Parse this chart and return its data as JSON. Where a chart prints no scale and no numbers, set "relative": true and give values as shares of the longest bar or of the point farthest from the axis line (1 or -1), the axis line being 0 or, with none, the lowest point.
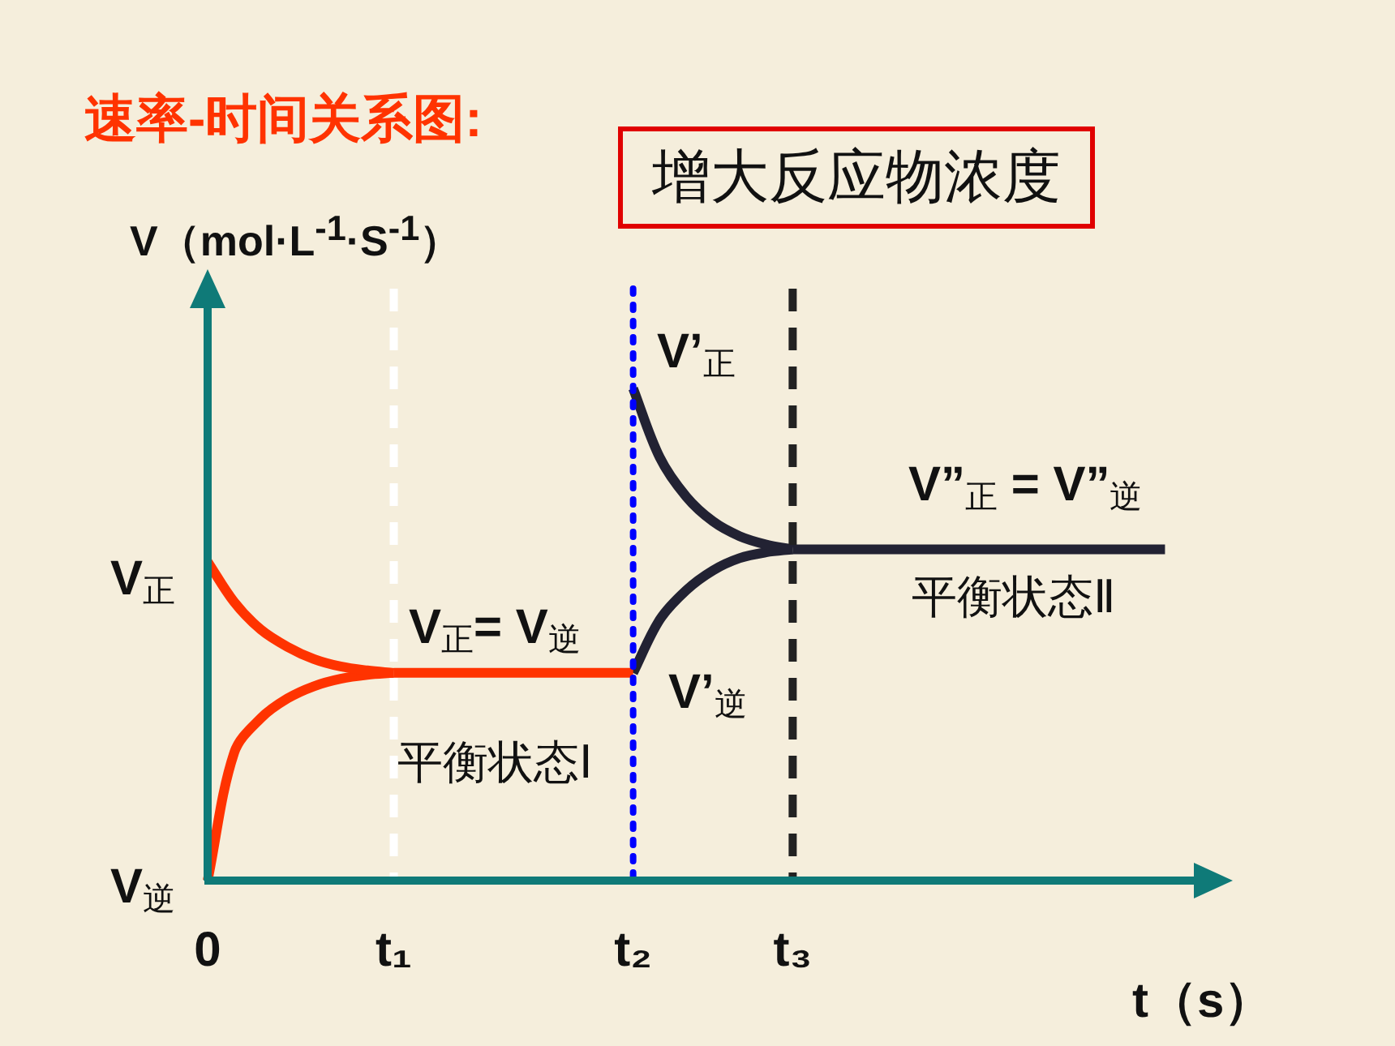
{
  "chart_data": {
    "type": "line",
    "title": "速率-时间关系图:",
    "subtitle": "增大反应物浓度",
    "xlabel": "t（s）",
    "ylabel": "V（mol·L$^{-1}$·S$^{-1}$）",
    "relative": true,
    "marker": "none",
    "line_style": "solid",
    "grid": false,
    "legend": false,
    "categories": [
      "0",
      null,
      null,
      null,
      null,
      null,
      null,
      "t₁",
      null,
      null,
      null,
      null,
      null,
      null,
      null,
      null,
      "t₂",
      null,
      null,
      null,
      null,
      null,
      "t₃",
      null,
      null,
      null,
      null,
      null,
      null,
      null,
      null,
      null,
      null,
      null,
      null,
      null,
      null,
      null,
      null
    ],
    "series": [
      {
        "color": "#ff3300",
        "values": [
          0.648,
          0.566,
          0.51,
          0.475,
          0.45,
          0.435,
          0.427,
          0.422,
          null,
          null,
          null,
          null,
          null,
          null,
          null,
          null,
          null,
          null,
          null,
          null,
          null,
          null,
          null,
          null,
          null,
          null,
          null,
          null,
          null,
          null,
          null,
          null,
          null,
          null,
          null,
          null,
          null,
          null,
          null
        ]
      },
      {
        "color": "#ff3300",
        "values": [
          0,
          0.26,
          0.33,
          0.37,
          0.395,
          0.41,
          0.418,
          0.422,
          null,
          null,
          null,
          null,
          null,
          null,
          null,
          null,
          null,
          null,
          null,
          null,
          null,
          null,
          null,
          null,
          null,
          null,
          null,
          null,
          null,
          null,
          null,
          null,
          null,
          null,
          null,
          null,
          null,
          null,
          null
        ]
      },
      {
        "color": "#ff3300",
        "values": [
          null,
          null,
          null,
          null,
          null,
          null,
          null,
          0.422,
          0.422,
          0.422,
          0.422,
          0.422,
          0.422,
          0.422,
          0.422,
          0.422,
          0.422,
          null,
          null,
          null,
          null,
          null,
          null,
          null,
          null,
          null,
          null,
          null,
          null,
          null,
          null,
          null,
          null,
          null,
          null,
          null,
          null,
          null,
          null
        ]
      },
      {
        "color": "#222233",
        "values": [
          null,
          null,
          null,
          null,
          null,
          null,
          null,
          null,
          null,
          null,
          null,
          null,
          null,
          null,
          null,
          null,
          1,
          0.86,
          0.78,
          0.73,
          0.7,
          0.683,
          0.673,
          null,
          null,
          null,
          null,
          null,
          null,
          null,
          null,
          null,
          null,
          null,
          null,
          null,
          null,
          null,
          null
        ]
      },
      {
        "color": "#222233",
        "values": [
          null,
          null,
          null,
          null,
          null,
          null,
          null,
          null,
          null,
          null,
          null,
          null,
          null,
          null,
          null,
          null,
          0.422,
          0.53,
          0.59,
          0.63,
          0.655,
          0.667,
          0.673,
          null,
          null,
          null,
          null,
          null,
          null,
          null,
          null,
          null,
          null,
          null,
          null,
          null,
          null,
          null,
          null
        ]
      },
      {
        "color": "#222233",
        "values": [
          null,
          null,
          null,
          null,
          null,
          null,
          null,
          null,
          null,
          null,
          null,
          null,
          null,
          null,
          null,
          null,
          null,
          null,
          null,
          null,
          null,
          null,
          0.673,
          0.673,
          0.673,
          0.673,
          0.673,
          0.673,
          0.673,
          0.673,
          0.673,
          0.673,
          0.673,
          0.673,
          0.673,
          0.673,
          0.673,
          null,
          null
        ]
      }
    ],
    "ref_lines": [
      {
        "axis": "x",
        "value": "t₁",
        "color": "#ffffff",
        "line_style": "dashed"
      },
      {
        "axis": "x",
        "value": "t₂",
        "color": "#0000ff",
        "line_style": "dotted"
      },
      {
        "axis": "x",
        "value": "t₃",
        "color": "#222222",
        "line_style": "dashed"
      }
    ],
    "annotations": [
      "V$_{正}$",
      "V$_{逆}$",
      "V$_{正}$= V$_{逆}$",
      "平衡状态Ⅰ",
      "V’$_{正}$",
      "V’$_{逆}$",
      "V”$_{正}$ = V”$_{逆}$",
      "平衡状态Ⅱ"
    ]
  }
}
